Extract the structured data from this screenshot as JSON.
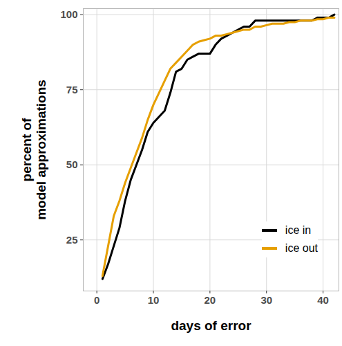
{
  "chart_data": {
    "type": "line",
    "x_label": "days of error",
    "y_label": "percent of\nmodel approximations",
    "x": [
      1,
      2,
      3,
      4,
      5,
      6,
      7,
      8,
      9,
      10,
      11,
      12,
      13,
      14,
      15,
      16,
      17,
      18,
      19,
      20,
      21,
      22,
      23,
      24,
      25,
      26,
      27,
      28,
      29,
      30,
      31,
      32,
      33,
      34,
      35,
      36,
      37,
      38,
      39,
      40,
      41,
      42
    ],
    "series": [
      {
        "name": "ice in",
        "color": "#000000",
        "values": [
          12,
          17,
          23,
          29,
          38,
          45,
          50,
          55,
          61,
          64,
          66,
          68,
          74,
          81,
          82,
          85,
          86,
          87,
          87,
          87,
          90,
          92,
          93,
          94,
          95,
          96,
          96,
          98,
          98,
          98,
          98,
          98,
          98,
          98,
          98,
          98,
          98,
          98,
          99,
          99,
          99,
          100
        ]
      },
      {
        "name": "ice out",
        "color": "#e69f00",
        "values": [
          13,
          23,
          33,
          38,
          44,
          49,
          54,
          59,
          65,
          70,
          74,
          78,
          82,
          84,
          86,
          88,
          90,
          91,
          91.5,
          92,
          93,
          93,
          93.5,
          94,
          94.5,
          95,
          95,
          96,
          96,
          96.5,
          97,
          97,
          97,
          97.5,
          97.5,
          98,
          98,
          98,
          98.5,
          98.5,
          99,
          99
        ]
      }
    ],
    "xlim": [
      -2.4,
      42.8
    ],
    "ylim": [
      8,
      102
    ],
    "xticks": [
      0,
      10,
      20,
      30,
      40
    ],
    "yticks": [
      25,
      50,
      75,
      100
    ],
    "grid": true,
    "legend": "lower right"
  }
}
